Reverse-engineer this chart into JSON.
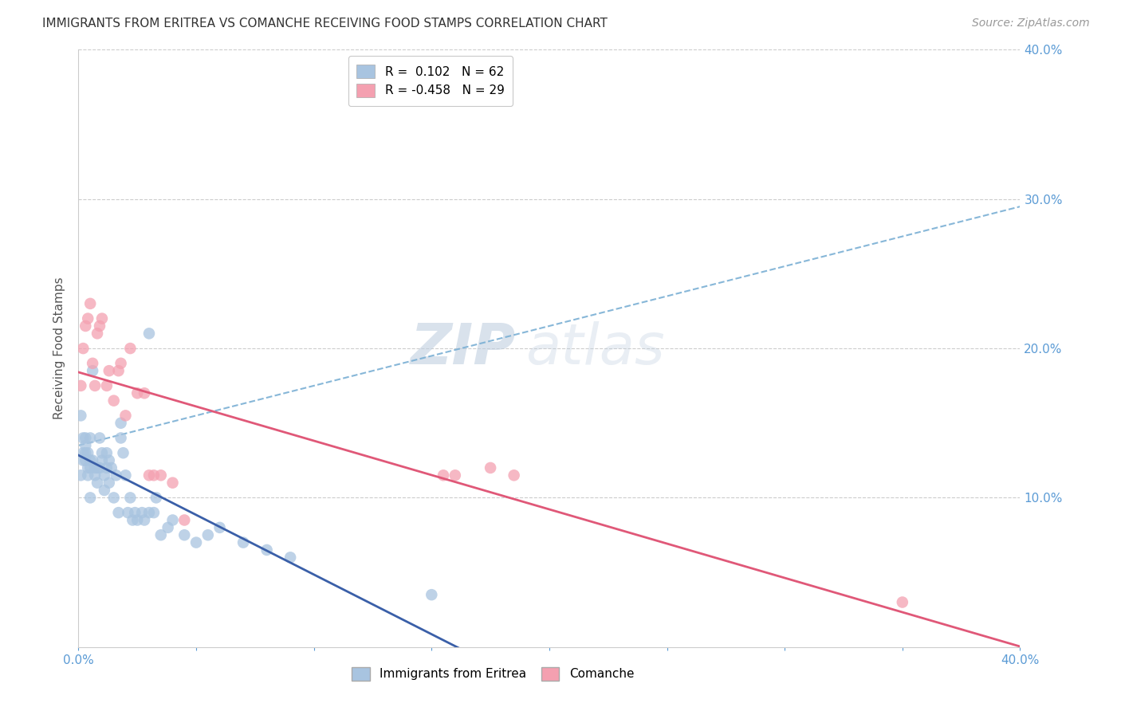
{
  "title": "IMMIGRANTS FROM ERITREA VS COMANCHE RECEIVING FOOD STAMPS CORRELATION CHART",
  "source": "Source: ZipAtlas.com",
  "ylabel": "Receiving Food Stamps",
  "xlim": [
    0.0,
    0.4
  ],
  "ylim": [
    0.0,
    0.4
  ],
  "xtick_positions": [
    0.0,
    0.05,
    0.1,
    0.15,
    0.2,
    0.25,
    0.3,
    0.35,
    0.4
  ],
  "xtick_labels_sparse": {
    "0": "0.0%",
    "8": "40.0%"
  },
  "ytick_positions": [
    0.1,
    0.2,
    0.3,
    0.4
  ],
  "right_ytick_labels": [
    "10.0%",
    "20.0%",
    "30.0%",
    "40.0%"
  ],
  "legend_r1": "R =  0.102",
  "legend_n1": "N = 62",
  "legend_r2": "R = -0.458",
  "legend_n2": "N = 29",
  "color_eritrea": "#a8c4e0",
  "color_comanche": "#f4a0b0",
  "color_line_eritrea": "#3a5fa8",
  "color_line_comanche": "#e05878",
  "color_dash_eritrea": "#7aafd4",
  "watermark_zip": "ZIP",
  "watermark_atlas": "atlas",
  "eritrea_x": [
    0.001,
    0.001,
    0.002,
    0.002,
    0.002,
    0.003,
    0.003,
    0.003,
    0.003,
    0.004,
    0.004,
    0.004,
    0.005,
    0.005,
    0.005,
    0.005,
    0.006,
    0.006,
    0.007,
    0.007,
    0.008,
    0.008,
    0.009,
    0.009,
    0.01,
    0.01,
    0.011,
    0.011,
    0.012,
    0.012,
    0.013,
    0.013,
    0.014,
    0.015,
    0.016,
    0.017,
    0.018,
    0.018,
    0.019,
    0.02,
    0.021,
    0.022,
    0.023,
    0.024,
    0.025,
    0.027,
    0.028,
    0.03,
    0.03,
    0.032,
    0.033,
    0.035,
    0.038,
    0.04,
    0.045,
    0.05,
    0.055,
    0.06,
    0.07,
    0.08,
    0.09,
    0.15
  ],
  "eritrea_y": [
    0.115,
    0.155,
    0.13,
    0.125,
    0.14,
    0.125,
    0.13,
    0.135,
    0.14,
    0.115,
    0.12,
    0.13,
    0.14,
    0.125,
    0.12,
    0.1,
    0.185,
    0.125,
    0.12,
    0.115,
    0.12,
    0.11,
    0.14,
    0.12,
    0.125,
    0.13,
    0.115,
    0.105,
    0.13,
    0.12,
    0.11,
    0.125,
    0.12,
    0.1,
    0.115,
    0.09,
    0.15,
    0.14,
    0.13,
    0.115,
    0.09,
    0.1,
    0.085,
    0.09,
    0.085,
    0.09,
    0.085,
    0.21,
    0.09,
    0.09,
    0.1,
    0.075,
    0.08,
    0.085,
    0.075,
    0.07,
    0.075,
    0.08,
    0.07,
    0.065,
    0.06,
    0.035
  ],
  "comanche_x": [
    0.001,
    0.002,
    0.003,
    0.004,
    0.005,
    0.006,
    0.007,
    0.008,
    0.009,
    0.01,
    0.012,
    0.013,
    0.015,
    0.017,
    0.018,
    0.02,
    0.022,
    0.025,
    0.028,
    0.03,
    0.032,
    0.035,
    0.04,
    0.045,
    0.155,
    0.16,
    0.175,
    0.185,
    0.35
  ],
  "comanche_y": [
    0.175,
    0.2,
    0.215,
    0.22,
    0.23,
    0.19,
    0.175,
    0.21,
    0.215,
    0.22,
    0.175,
    0.185,
    0.165,
    0.185,
    0.19,
    0.155,
    0.2,
    0.17,
    0.17,
    0.115,
    0.115,
    0.115,
    0.11,
    0.085,
    0.115,
    0.115,
    0.12,
    0.115,
    0.03
  ],
  "dashed_line_x": [
    0.0,
    0.4
  ],
  "dashed_line_y": [
    0.135,
    0.295
  ]
}
